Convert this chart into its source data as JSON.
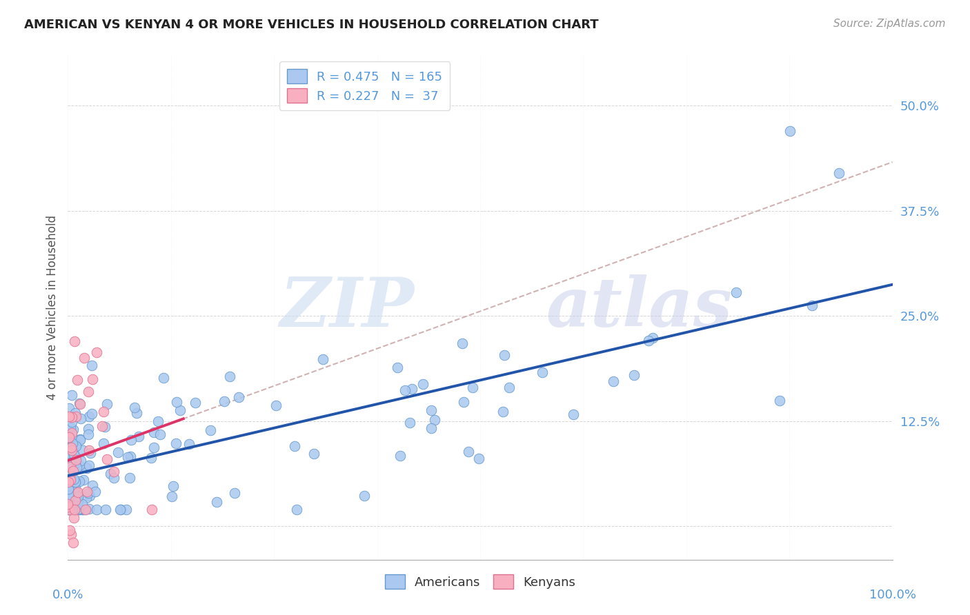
{
  "title": "AMERICAN VS KENYAN 4 OR MORE VEHICLES IN HOUSEHOLD CORRELATION CHART",
  "source": "Source: ZipAtlas.com",
  "ylabel": "4 or more Vehicles in Household",
  "xlim": [
    0.0,
    1.0
  ],
  "ylim": [
    -0.04,
    0.56
  ],
  "yticks": [
    0.0,
    0.125,
    0.25,
    0.375,
    0.5
  ],
  "ytick_labels": [
    "",
    "12.5%",
    "25.0%",
    "37.5%",
    "50.0%"
  ],
  "american_color": "#aac8f0",
  "american_edge": "#6699cc",
  "kenyan_color": "#f8b0c0",
  "kenyan_edge": "#e07090",
  "american_line_color": "#2255aa",
  "kenyan_line_color": "#dd3366",
  "dashed_line_color": "#ccaaaa",
  "R_american": 0.475,
  "N_american": 165,
  "R_kenyan": 0.227,
  "N_kenyan": 37,
  "watermark_zip": "ZIP",
  "watermark_atlas": "atlas",
  "background_color": "#ffffff",
  "grid_color": "#cccccc",
  "title_color": "#222222",
  "source_color": "#999999",
  "tick_label_color": "#5599dd",
  "ylabel_color": "#555555"
}
